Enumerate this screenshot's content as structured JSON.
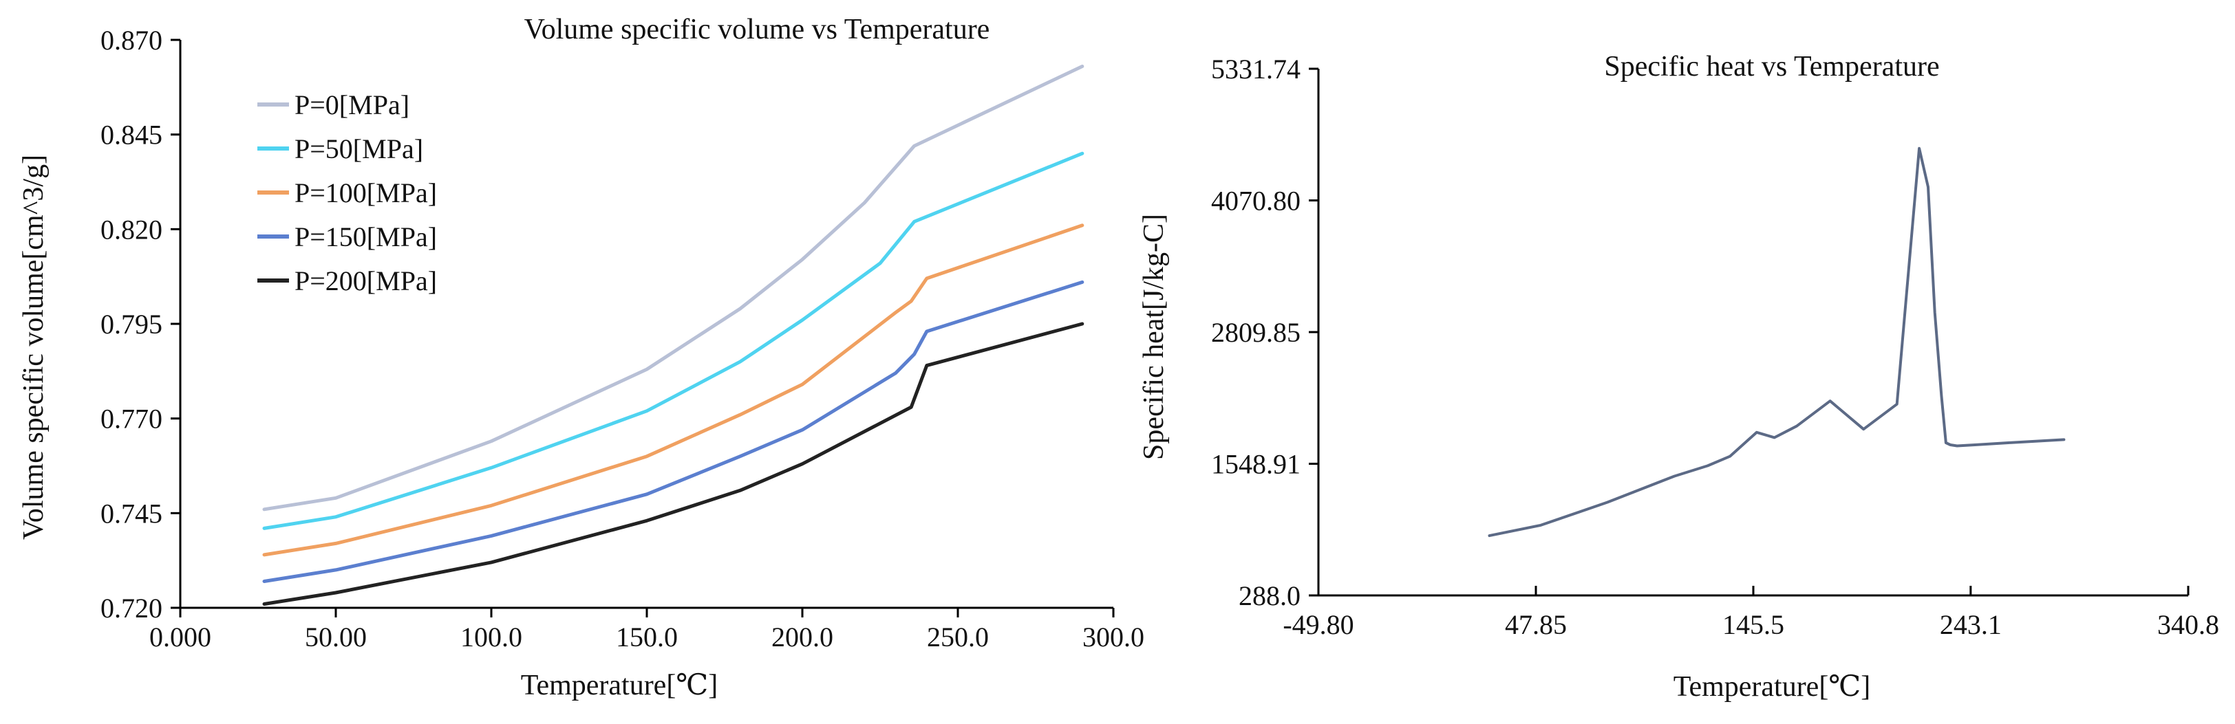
{
  "chart_data": [
    {
      "type": "line",
      "title": "Volume specific volume vs Temperature",
      "xlabel": "Temperature[℃]",
      "ylabel": "Volume specific volume[cm^3/g]",
      "xlim": [
        0,
        300
      ],
      "ylim": [
        0.72,
        0.87
      ],
      "x_tick_labels": [
        "0.000",
        "50.00",
        "100.0",
        "150.0",
        "200.0",
        "250.0",
        "300.0"
      ],
      "x_tick_values": [
        0,
        50,
        100,
        150,
        200,
        250,
        300
      ],
      "y_tick_labels": [
        "0.720",
        "0.745",
        "0.770",
        "0.795",
        "0.820",
        "0.845",
        "0.870"
      ],
      "y_tick_values": [
        0.72,
        0.745,
        0.77,
        0.795,
        0.82,
        0.845,
        0.87
      ],
      "grid": false,
      "legend_position": "top-left",
      "series": [
        {
          "name": "P=0[MPa]",
          "color": "#b8c0d6",
          "x": [
            27,
            50,
            100,
            150,
            180,
            200,
            220,
            236,
            290
          ],
          "y": [
            0.746,
            0.749,
            0.764,
            0.783,
            0.799,
            0.812,
            0.827,
            0.842,
            0.863
          ]
        },
        {
          "name": "P=50[MPa]",
          "color": "#4fd3f0",
          "x": [
            27,
            50,
            100,
            150,
            180,
            200,
            225,
            236,
            290
          ],
          "y": [
            0.741,
            0.744,
            0.757,
            0.772,
            0.785,
            0.796,
            0.811,
            0.822,
            0.84
          ]
        },
        {
          "name": "P=100[MPa]",
          "color": "#f0a060",
          "x": [
            27,
            50,
            100,
            150,
            180,
            200,
            230,
            235,
            240,
            290
          ],
          "y": [
            0.734,
            0.737,
            0.747,
            0.76,
            0.771,
            0.779,
            0.798,
            0.801,
            0.807,
            0.821
          ]
        },
        {
          "name": "P=150[MPa]",
          "color": "#5b7fcf",
          "x": [
            27,
            50,
            100,
            150,
            180,
            200,
            230,
            236,
            240,
            290
          ],
          "y": [
            0.727,
            0.73,
            0.739,
            0.75,
            0.76,
            0.767,
            0.782,
            0.787,
            0.793,
            0.806
          ]
        },
        {
          "name": "P=200[MPa]",
          "color": "#222222",
          "x": [
            27,
            50,
            100,
            150,
            180,
            200,
            235,
            240,
            290
          ],
          "y": [
            0.721,
            0.724,
            0.732,
            0.743,
            0.751,
            0.758,
            0.773,
            0.784,
            0.795
          ]
        }
      ]
    },
    {
      "type": "line",
      "title": "Specific heat vs Temperature",
      "xlabel": "Temperature[℃]",
      "ylabel": "Specific heat[J/kg-C]",
      "xlim": [
        -49.8,
        340.8
      ],
      "ylim": [
        288.0,
        5331.74
      ],
      "x_tick_labels": [
        "-49.80",
        "47.85",
        "145.5",
        "243.1",
        "340.8"
      ],
      "x_tick_values": [
        -49.8,
        47.85,
        145.5,
        243.1,
        340.8
      ],
      "y_tick_labels": [
        "288.0",
        "1548.91",
        "2809.85",
        "4070.80",
        "5331.74"
      ],
      "y_tick_values": [
        288.0,
        1548.91,
        2809.85,
        4070.8,
        5331.74
      ],
      "grid": false,
      "series": [
        {
          "name": "Specific heat",
          "color": "#5c6a86",
          "x": [
            27,
            50,
            80,
            110,
            125,
            135,
            147,
            155,
            165,
            180,
            195,
            210,
            220,
            224,
            227,
            230,
            232,
            234,
            237,
            245,
            260,
            285
          ],
          "y": [
            860,
            960,
            1180,
            1430,
            1530,
            1620,
            1850,
            1800,
            1910,
            2150,
            1880,
            2120,
            4570,
            4200,
            3000,
            2200,
            1750,
            1730,
            1720,
            1730,
            1750,
            1780
          ]
        }
      ]
    }
  ]
}
